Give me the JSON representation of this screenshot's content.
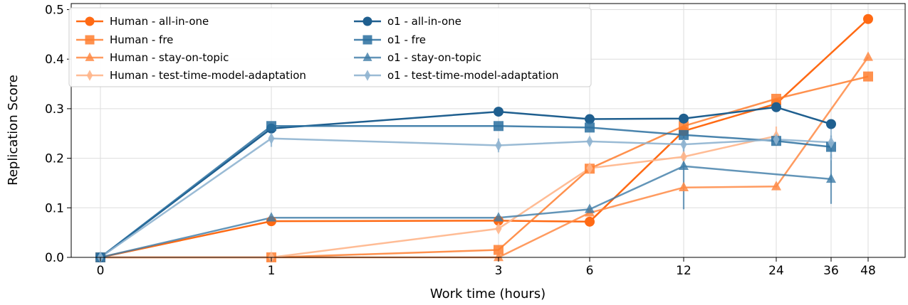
{
  "chart_data": {
    "type": "line",
    "title": "",
    "xlabel": "Work time (hours)",
    "ylabel": "Replication Score",
    "x_ticks": [
      0,
      1,
      3,
      6,
      12,
      24,
      36,
      48
    ],
    "x_tick_labels": [
      "0",
      "1",
      "3",
      "6",
      "12",
      "24",
      "36",
      "48"
    ],
    "y_ticks": [
      0.0,
      0.1,
      0.2,
      0.3,
      0.4,
      0.5
    ],
    "y_tick_labels": [
      "0.0",
      "0.1",
      "0.2",
      "0.3",
      "0.4",
      "0.5"
    ],
    "ylim": [
      0,
      0.5
    ],
    "grid": true,
    "legend_position": "top-left",
    "series": [
      {
        "name": "Human - all-in-one",
        "color": "#ff6a14",
        "marker": "circle",
        "alpha": 1.0,
        "points": [
          {
            "x": 0,
            "y": 0.0
          },
          {
            "x": 1,
            "y": 0.073
          },
          {
            "x": 3,
            "y": 0.074
          },
          {
            "x": 6,
            "y": 0.072
          },
          {
            "x": 12,
            "y": 0.255
          },
          {
            "x": 24,
            "y": 0.31
          },
          {
            "x": 48,
            "y": 0.481
          }
        ]
      },
      {
        "name": "Human - fre",
        "color": "#ff7e2f",
        "marker": "square",
        "alpha": 0.85,
        "points": [
          {
            "x": 0,
            "y": 0.0
          },
          {
            "x": 1,
            "y": 0.0
          },
          {
            "x": 3,
            "y": 0.015
          },
          {
            "x": 6,
            "y": 0.179
          },
          {
            "x": 12,
            "y": 0.265
          },
          {
            "x": 24,
            "y": 0.32
          },
          {
            "x": 48,
            "y": 0.365
          }
        ]
      },
      {
        "name": "Human - stay-on-topic",
        "color": "#ff8a44",
        "marker": "triangle",
        "alpha": 0.85,
        "points": [
          {
            "x": 0,
            "y": 0.0
          },
          {
            "x": 1,
            "y": 0.0
          },
          {
            "x": 3,
            "y": 0.0
          },
          {
            "x": 6,
            "y": 0.09
          },
          {
            "x": 12,
            "y": 0.141
          },
          {
            "x": 24,
            "y": 0.143
          },
          {
            "x": 48,
            "y": 0.404
          }
        ]
      },
      {
        "name": "Human - test-time-model-adaptation",
        "color": "#ffb58a",
        "marker": "diamond",
        "alpha": 0.9,
        "points": [
          {
            "x": 0,
            "y": 0.0
          },
          {
            "x": 1,
            "y": 0.0
          },
          {
            "x": 3,
            "y": 0.058
          },
          {
            "x": 6,
            "y": 0.18
          },
          {
            "x": 12,
            "y": 0.203
          },
          {
            "x": 24,
            "y": 0.245
          }
        ]
      },
      {
        "name": "o1  - all-in-one",
        "color": "#1f5f8f",
        "marker": "circle",
        "alpha": 1.0,
        "points": [
          {
            "x": 0,
            "y": 0.0
          },
          {
            "x": 1,
            "y": 0.26
          },
          {
            "x": 3,
            "y": 0.294
          },
          {
            "x": 6,
            "y": 0.279
          },
          {
            "x": 12,
            "y": 0.28
          },
          {
            "x": 24,
            "y": 0.303
          },
          {
            "x": 36,
            "y": 0.269
          }
        ]
      },
      {
        "name": "o1  - fre",
        "color": "#2a6e9f",
        "marker": "square",
        "alpha": 0.85,
        "points": [
          {
            "x": 0,
            "y": 0.0
          },
          {
            "x": 1,
            "y": 0.265
          },
          {
            "x": 3,
            "y": 0.265
          },
          {
            "x": 6,
            "y": 0.262
          },
          {
            "x": 12,
            "y": 0.247
          },
          {
            "x": 24,
            "y": 0.235
          },
          {
            "x": 36,
            "y": 0.223
          }
        ]
      },
      {
        "name": "o1  - stay-on-topic",
        "color": "#3c7aa6",
        "marker": "triangle",
        "alpha": 0.8,
        "points": [
          {
            "x": 0,
            "y": 0.0
          },
          {
            "x": 1,
            "y": 0.08
          },
          {
            "x": 3,
            "y": 0.08
          },
          {
            "x": 6,
            "y": 0.097
          },
          {
            "x": 12,
            "y": 0.184
          },
          {
            "x": 36,
            "y": 0.158
          }
        ]
      },
      {
        "name": "o1  - test-time-model-adaptation",
        "color": "#8fb4d0",
        "marker": "diamond",
        "alpha": 0.9,
        "points": [
          {
            "x": 0,
            "y": 0.0
          },
          {
            "x": 1,
            "y": 0.24
          },
          {
            "x": 3,
            "y": 0.226
          },
          {
            "x": 6,
            "y": 0.234
          },
          {
            "x": 12,
            "y": 0.228
          },
          {
            "x": 24,
            "y": 0.238
          },
          {
            "x": 36,
            "y": 0.232
          }
        ]
      }
    ],
    "error_bars": [
      {
        "series": "o1  - stay-on-topic",
        "x": 12,
        "low": 0.097,
        "high": 0.27
      },
      {
        "series": "o1  - stay-on-topic",
        "x": 36,
        "low": 0.108,
        "high": 0.208
      },
      {
        "series": "o1  - fre",
        "x": 36,
        "low": 0.2,
        "high": 0.246
      },
      {
        "series": "o1  - test-time-model-adaptation",
        "x": 36,
        "low": 0.196,
        "high": 0.268
      },
      {
        "series": "o1  - test-time-model-adaptation",
        "x": 1,
        "low": 0.223,
        "high": 0.257
      },
      {
        "series": "o1  - test-time-model-adaptation",
        "x": 3,
        "low": 0.212,
        "high": 0.24
      },
      {
        "series": "o1  - test-time-model-adaptation",
        "x": 12,
        "low": 0.205,
        "high": 0.251
      },
      {
        "series": "Human - test-time-model-adaptation",
        "x": 24,
        "low": 0.226,
        "high": 0.264
      }
    ]
  }
}
